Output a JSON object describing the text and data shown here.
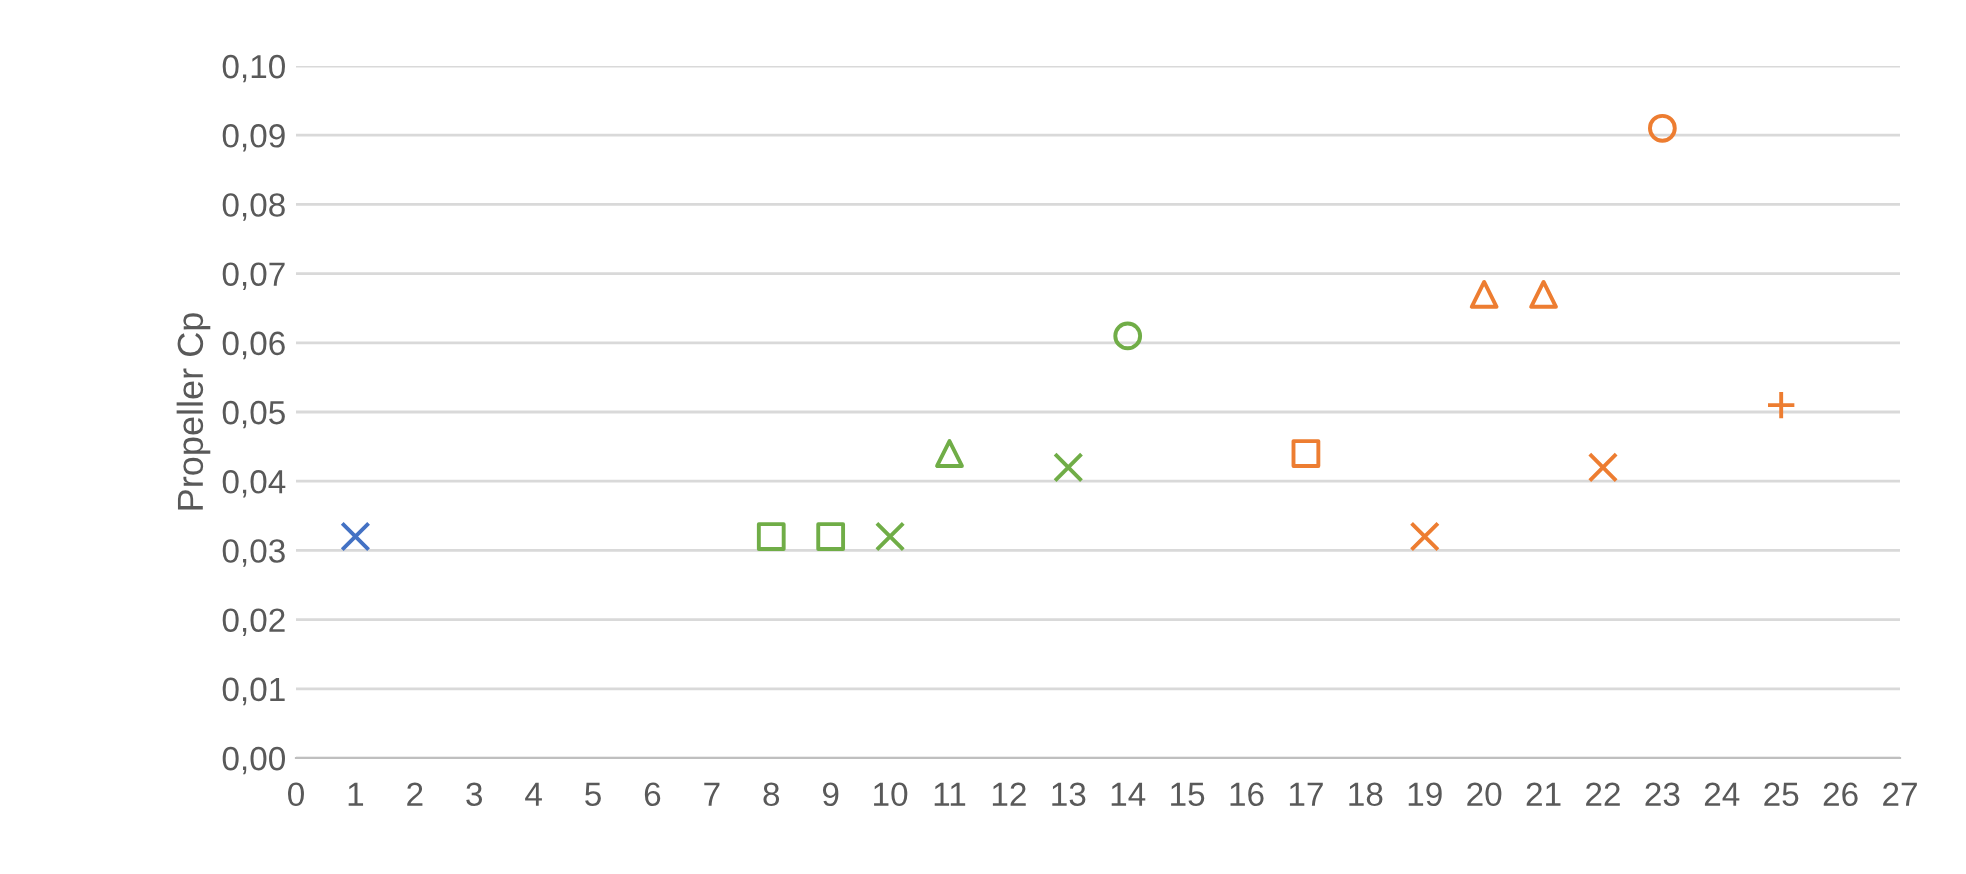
{
  "chart_data": {
    "type": "scatter",
    "ylabel": "Propeller Cp",
    "series": [
      {
        "color": "#4472c4",
        "marker": "cross",
        "x": [
          1
        ],
        "values": [
          0.032
        ]
      },
      {
        "color": "#70ad47",
        "marker": "square",
        "x": [
          8
        ],
        "values": [
          0.032
        ]
      },
      {
        "color": "#70ad47",
        "marker": "square",
        "x": [
          9
        ],
        "values": [
          0.032
        ]
      },
      {
        "color": "#70ad47",
        "marker": "cross",
        "x": [
          10
        ],
        "values": [
          0.032
        ]
      },
      {
        "color": "#70ad47",
        "marker": "triangle",
        "x": [
          11
        ],
        "values": [
          0.044
        ]
      },
      {
        "color": "#70ad47",
        "marker": "cross",
        "x": [
          13
        ],
        "values": [
          0.042
        ]
      },
      {
        "color": "#70ad47",
        "marker": "circle",
        "x": [
          14
        ],
        "values": [
          0.061
        ]
      },
      {
        "color": "#ed7d31",
        "marker": "square",
        "x": [
          17
        ],
        "values": [
          0.044
        ]
      },
      {
        "color": "#ed7d31",
        "marker": "cross",
        "x": [
          19
        ],
        "values": [
          0.032
        ]
      },
      {
        "color": "#ed7d31",
        "marker": "triangle",
        "x": [
          20
        ],
        "values": [
          0.067
        ]
      },
      {
        "color": "#ed7d31",
        "marker": "triangle",
        "x": [
          21
        ],
        "values": [
          0.067
        ]
      },
      {
        "color": "#ed7d31",
        "marker": "cross",
        "x": [
          22
        ],
        "values": [
          0.042
        ]
      },
      {
        "color": "#ed7d31",
        "marker": "circle",
        "x": [
          23
        ],
        "values": [
          0.091
        ]
      },
      {
        "color": "#ed7d31",
        "marker": "plus",
        "x": [
          25
        ],
        "values": [
          0.051
        ]
      }
    ],
    "xlim": [
      0,
      27
    ],
    "xticks": [
      0,
      1,
      2,
      3,
      4,
      5,
      6,
      7,
      8,
      9,
      10,
      11,
      12,
      13,
      14,
      15,
      16,
      17,
      18,
      19,
      20,
      21,
      22,
      23,
      24,
      25,
      26,
      27
    ],
    "ylim": [
      0,
      0.1
    ],
    "yticks": [
      {
        "value": 0,
        "label": "0,00"
      },
      {
        "value": 0.01,
        "label": "0,01"
      },
      {
        "value": 0.02,
        "label": "0,02"
      },
      {
        "value": 0.03,
        "label": "0,03"
      },
      {
        "value": 0.04,
        "label": "0,04"
      },
      {
        "value": 0.05,
        "label": "0,05"
      },
      {
        "value": 0.06,
        "label": "0,06"
      },
      {
        "value": 0.07,
        "label": "0,07"
      },
      {
        "value": 0.08,
        "label": "0,08"
      },
      {
        "value": 0.09,
        "label": "0,09"
      },
      {
        "value": 0.1,
        "label": "0,10"
      }
    ],
    "grid": "y",
    "legend": false
  }
}
